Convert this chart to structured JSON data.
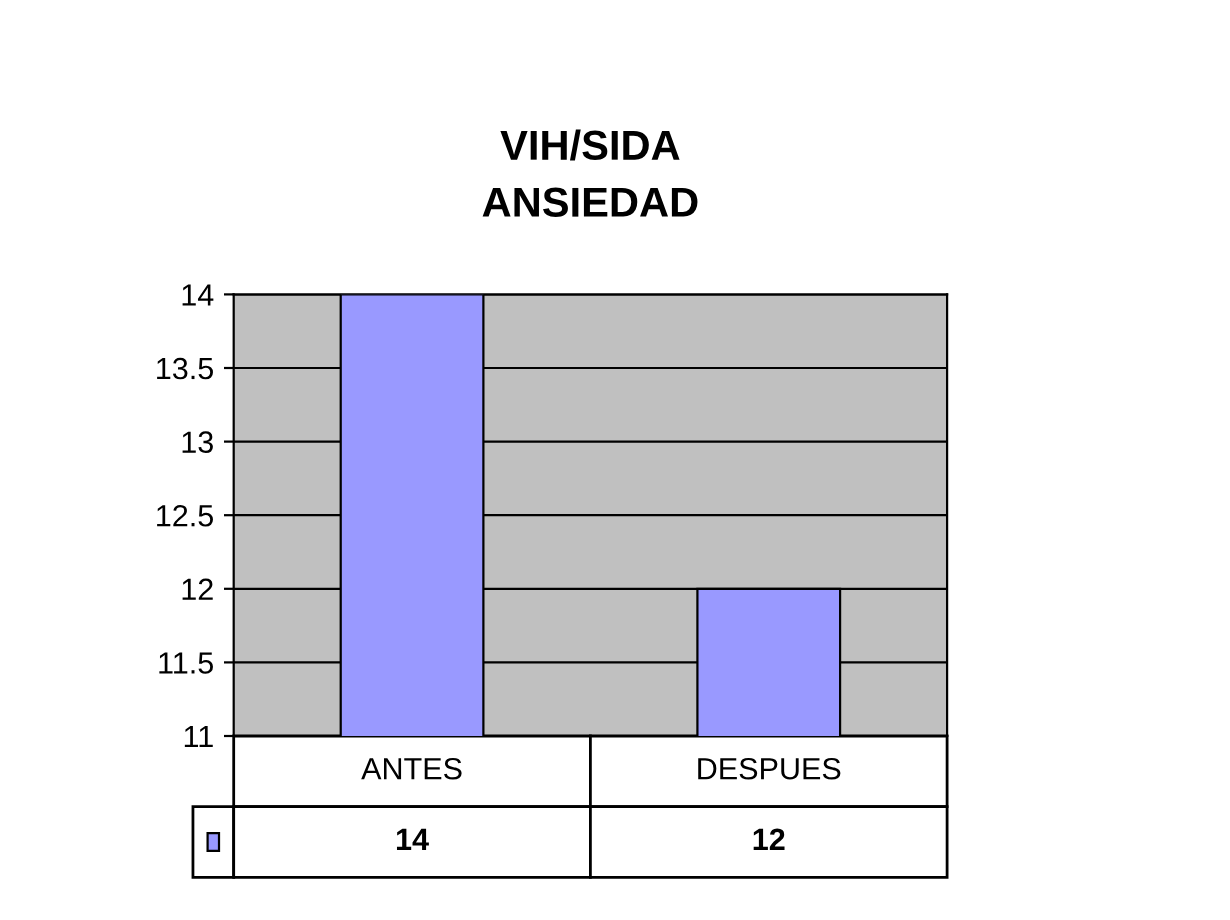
{
  "chart_data": {
    "type": "bar",
    "title": "VIH/SIDA\nANSIEDAD",
    "categories": [
      "ANTES",
      "DESPUES"
    ],
    "series": [
      {
        "color": "#9999ff",
        "values": [
          14,
          12
        ]
      }
    ],
    "ylim": [
      11,
      14
    ],
    "yticks": [
      11,
      11.5,
      12,
      12.5,
      13,
      13.5,
      14
    ],
    "grid": "y",
    "data_labels": true
  }
}
